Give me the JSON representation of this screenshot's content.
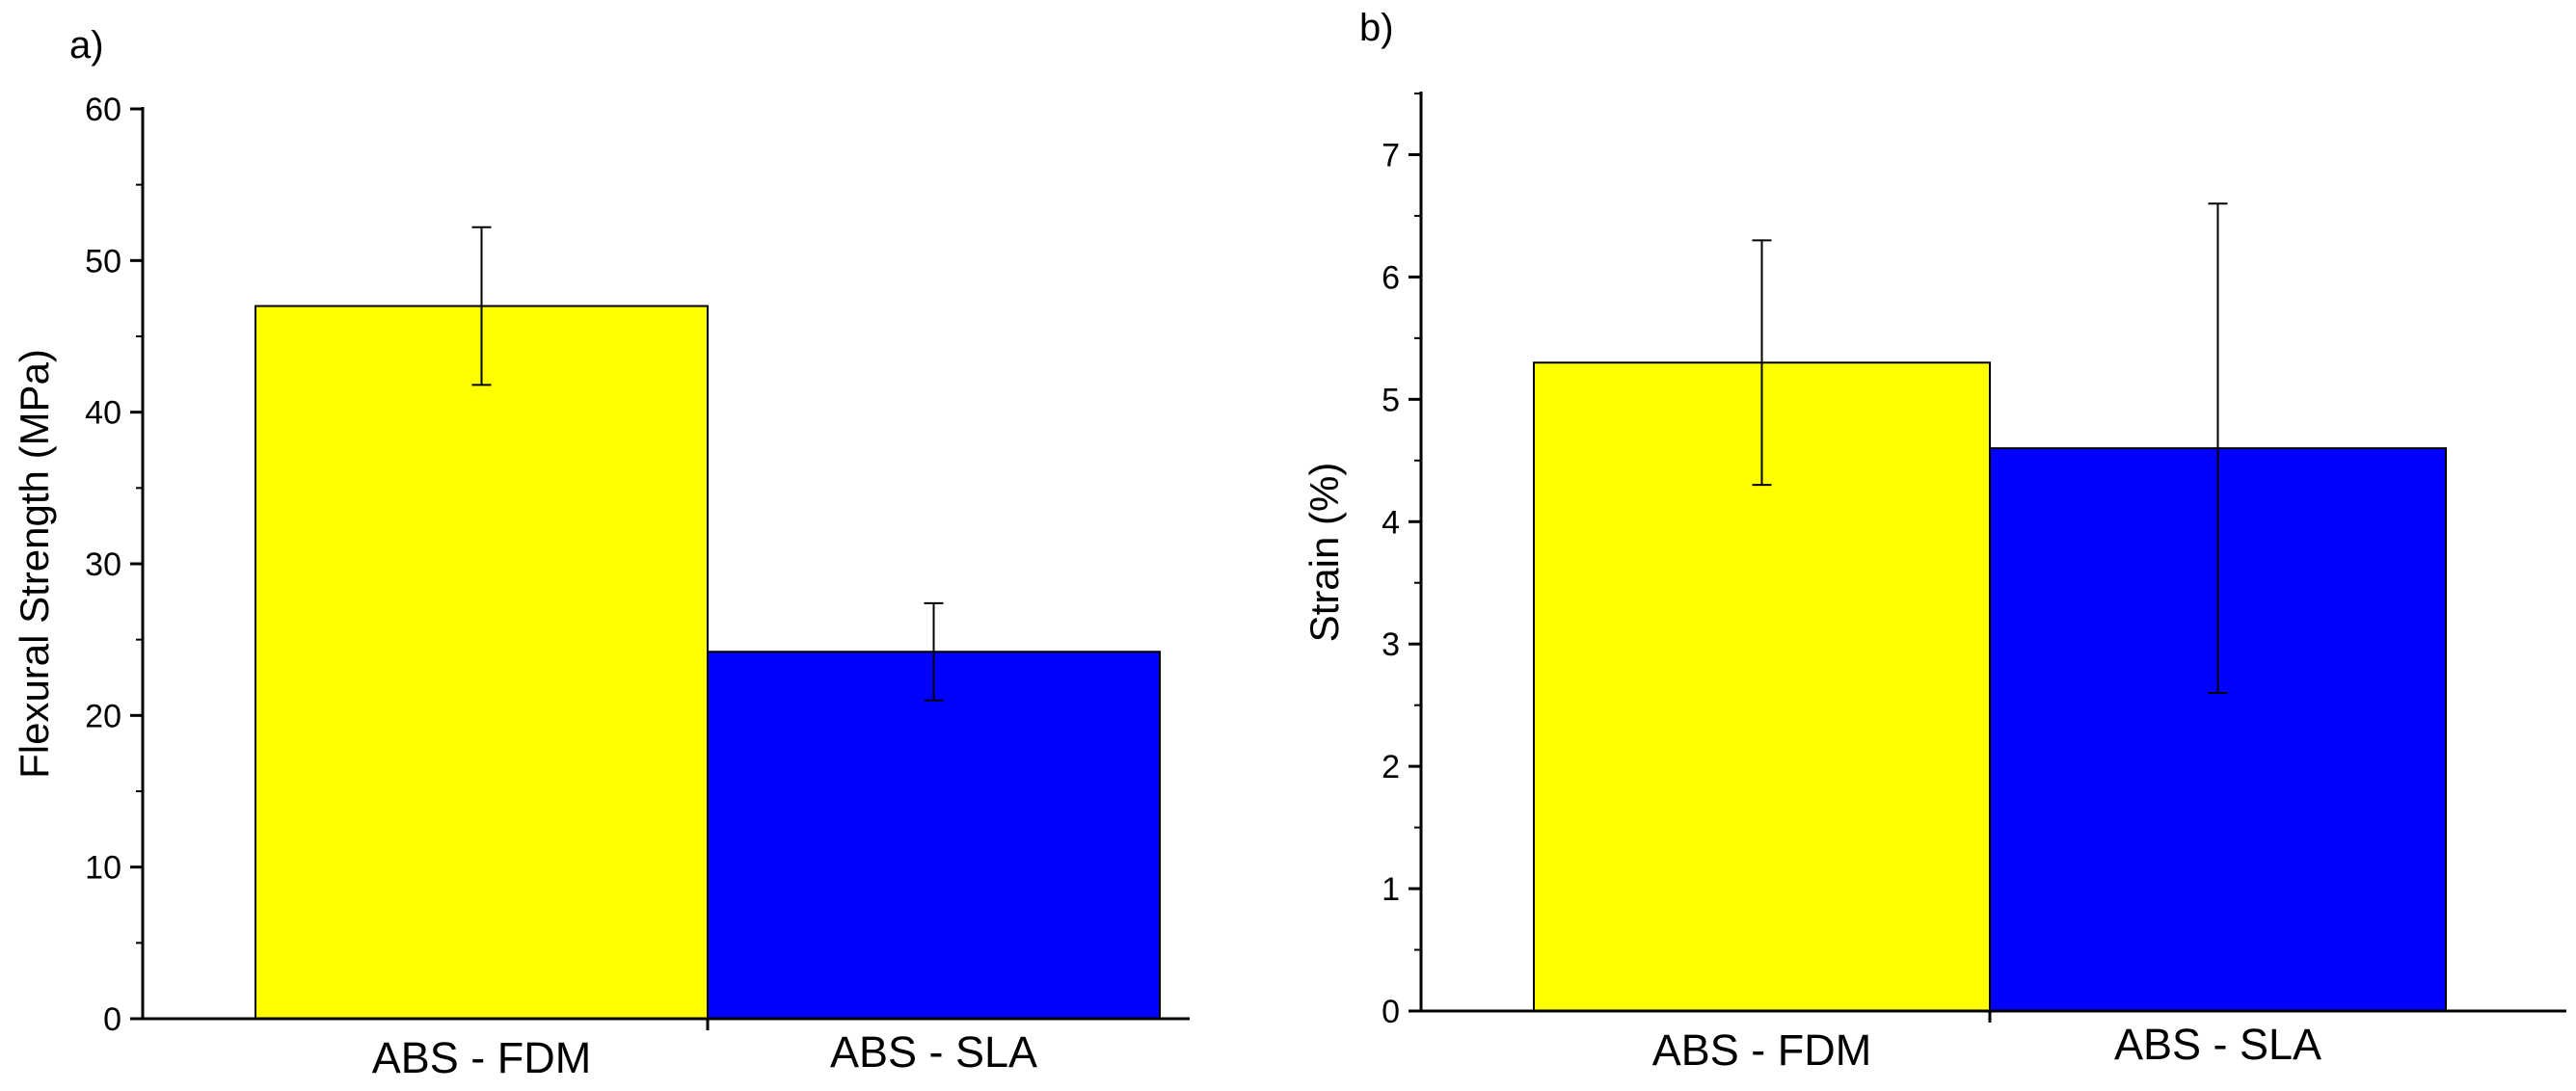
{
  "chart_data": [
    {
      "type": "bar",
      "panel_label": "a)",
      "title": "",
      "xlabel": "",
      "ylabel": "Flexural Strength (MPa)",
      "categories": [
        "ABS - FDM",
        "ABS - SLA"
      ],
      "values": [
        47,
        24.2
      ],
      "errors": [
        5.2,
        3.2
      ],
      "colors": [
        "#ffff00",
        "#0000ff"
      ],
      "ylim": [
        0,
        60
      ],
      "yticks": [
        0,
        10,
        20,
        30,
        40,
        50,
        60
      ],
      "ytick_labels": [
        "0",
        "10",
        "20",
        "30",
        "40",
        "50",
        "60"
      ],
      "grid": false,
      "legend": "none"
    },
    {
      "type": "bar",
      "panel_label": "b)",
      "title": "",
      "xlabel": "",
      "ylabel": "Strain (%)",
      "categories": [
        "ABS - FDM",
        "ABS - SLA"
      ],
      "values": [
        5.3,
        4.6
      ],
      "errors": [
        1.0,
        2.0
      ],
      "colors": [
        "#ffff00",
        "#0000ff"
      ],
      "ylim": [
        0,
        7.5
      ],
      "yticks": [
        0,
        1,
        2,
        3,
        4,
        5,
        6,
        7
      ],
      "ytick_labels": [
        "0",
        "1",
        "2",
        "3",
        "4",
        "5",
        "6",
        "7"
      ],
      "grid": false,
      "legend": "none"
    }
  ]
}
